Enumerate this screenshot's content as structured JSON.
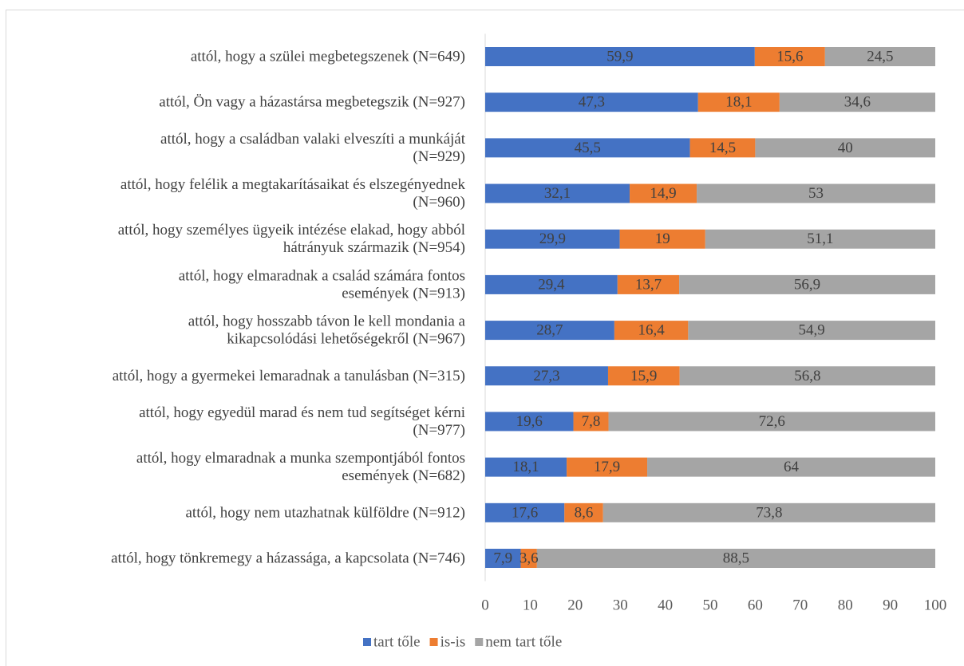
{
  "chart_data": {
    "type": "bar",
    "orientation": "horizontal",
    "stacked": true,
    "categories": [
      [
        "attól, hogy a szülei megbetegszenek (N=649)"
      ],
      [
        "attól, Ön vagy a házastársa megbetegszik (N=927)"
      ],
      [
        "attól, hogy a családban valaki elveszíti a munkáját",
        "(N=929)"
      ],
      [
        "attól, hogy felélik a megtakarításaikat és elszegényednek",
        "(N=960)"
      ],
      [
        "attól, hogy személyes ügyeik intézése elakad, hogy abból",
        "hátrányuk származik (N=954)"
      ],
      [
        "attól, hogy elmaradnak a család számára fontos",
        "események (N=913)"
      ],
      [
        "attól, hogy hosszabb távon le kell mondania a",
        "kikapcsolódási lehetőségekről (N=967)"
      ],
      [
        "attól, hogy a gyermekei lemaradnak a tanulásban (N=315)"
      ],
      [
        "attól, hogy egyedül marad és nem tud segítséget kérni",
        "(N=977)"
      ],
      [
        "attól, hogy elmaradnak a munka szempontjából fontos",
        "események (N=682)"
      ],
      [
        "attól, hogy nem utazhatnak külföldre (N=912)"
      ],
      [
        "attól, hogy tönkremegy a házassága, a kapcsolata (N=746)"
      ]
    ],
    "series": [
      {
        "name": "tart tőle",
        "color": "#4472C4",
        "values": [
          59.9,
          47.3,
          45.5,
          32.1,
          29.9,
          29.4,
          28.7,
          27.3,
          19.6,
          18.1,
          17.6,
          7.9
        ],
        "labels": [
          "59,9",
          "47,3",
          "45,5",
          "32,1",
          "29,9",
          "29,4",
          "28,7",
          "27,3",
          "19,6",
          "18,1",
          "17,6",
          "7,9"
        ]
      },
      {
        "name": "is-is",
        "color": "#ED7D31",
        "values": [
          15.6,
          18.1,
          14.5,
          14.9,
          19,
          13.7,
          16.4,
          15.9,
          7.8,
          17.9,
          8.6,
          3.6
        ],
        "labels": [
          "15,6",
          "18,1",
          "14,5",
          "14,9",
          "19",
          "13,7",
          "16,4",
          "15,9",
          "7,8",
          "17,9",
          "8,6",
          "3,6"
        ]
      },
      {
        "name": "nem tart tőle",
        "color": "#A5A5A5",
        "values": [
          24.5,
          34.6,
          40,
          53,
          51.1,
          56.9,
          54.9,
          56.8,
          72.6,
          64,
          73.8,
          88.5
        ],
        "labels": [
          "24,5",
          "34,6",
          "40",
          "53",
          "51,1",
          "56,9",
          "54,9",
          "56,8",
          "72,6",
          "64",
          "73,8",
          "88,5"
        ]
      }
    ],
    "xlim": [
      0,
      100
    ],
    "xticks": [
      0,
      10,
      20,
      30,
      40,
      50,
      60,
      70,
      80,
      90,
      100
    ],
    "grid": false,
    "legend_position": "bottom"
  }
}
